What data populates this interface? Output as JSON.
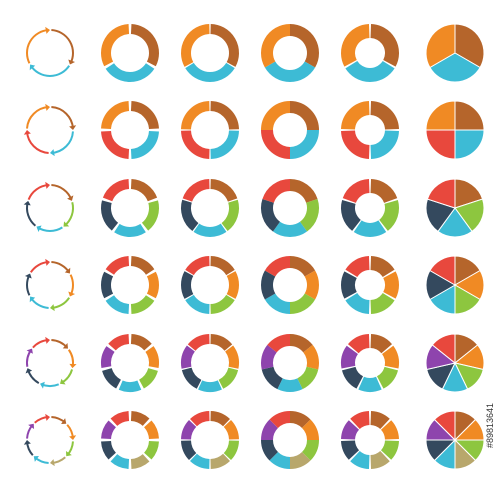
{
  "watermark": {
    "id": "#89813641"
  }
}
